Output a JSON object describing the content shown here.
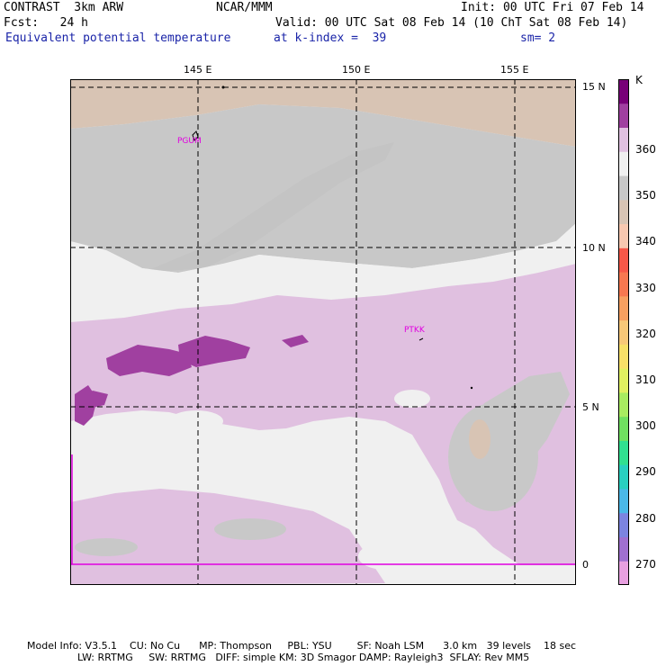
{
  "header": {
    "left1": "CONTRAST  3km ARW",
    "left2": "Fcst:   24 h",
    "center1": "NCAR/MMM",
    "init": "Init: 00 UTC Fri 07 Feb 14",
    "valid": "Valid: 00 UTC Sat 08 Feb 14 (10 ChT Sat 08 Feb 14)",
    "field": "Equivalent potential temperature",
    "level": "at k-index =  39",
    "smooth": "sm= 2"
  },
  "axes": {
    "lon_labels": [
      "145 E",
      "150 E",
      "155 E"
    ],
    "lat_labels": [
      "15 N",
      "10 N",
      "5 N",
      "0"
    ]
  },
  "stations": [
    {
      "id": "PGUM",
      "lon": 144.8,
      "lat": 13.5
    },
    {
      "id": "PTKK",
      "lon": 151.8,
      "lat": 7.4
    }
  ],
  "colorbar": {
    "unit": "K",
    "labels": [
      "360",
      "350",
      "340",
      "330",
      "320",
      "310",
      "300",
      "290",
      "280",
      "270"
    ],
    "colors": [
      "#e8a0e0",
      "#a070d0",
      "#7c84e0",
      "#4ab8e8",
      "#28d0c0",
      "#30e090",
      "#70e060",
      "#a8ec60",
      "#e0f060",
      "#f8e068",
      "#f8c878",
      "#f8a060",
      "#f87850",
      "#f85848",
      "#f8c8b0",
      "#d8c4b4",
      "#c8c8c8",
      "#f0f0f0",
      "#e0c0e0",
      "#a040a0",
      "#780078"
    ]
  },
  "footer": {
    "line1": "Model Info: V3.5.1    CU: No Cu      MP: Thompson     PBL: YSU        SF: Noah LSM      3.0 km   39 levels    18 sec",
    "line2": "                LW: RRTMG     SW: RRTMG   DIFF: simple KM: 3D Smagor DAMP: Rayleigh3  SFLAY: Rev MM5"
  }
}
